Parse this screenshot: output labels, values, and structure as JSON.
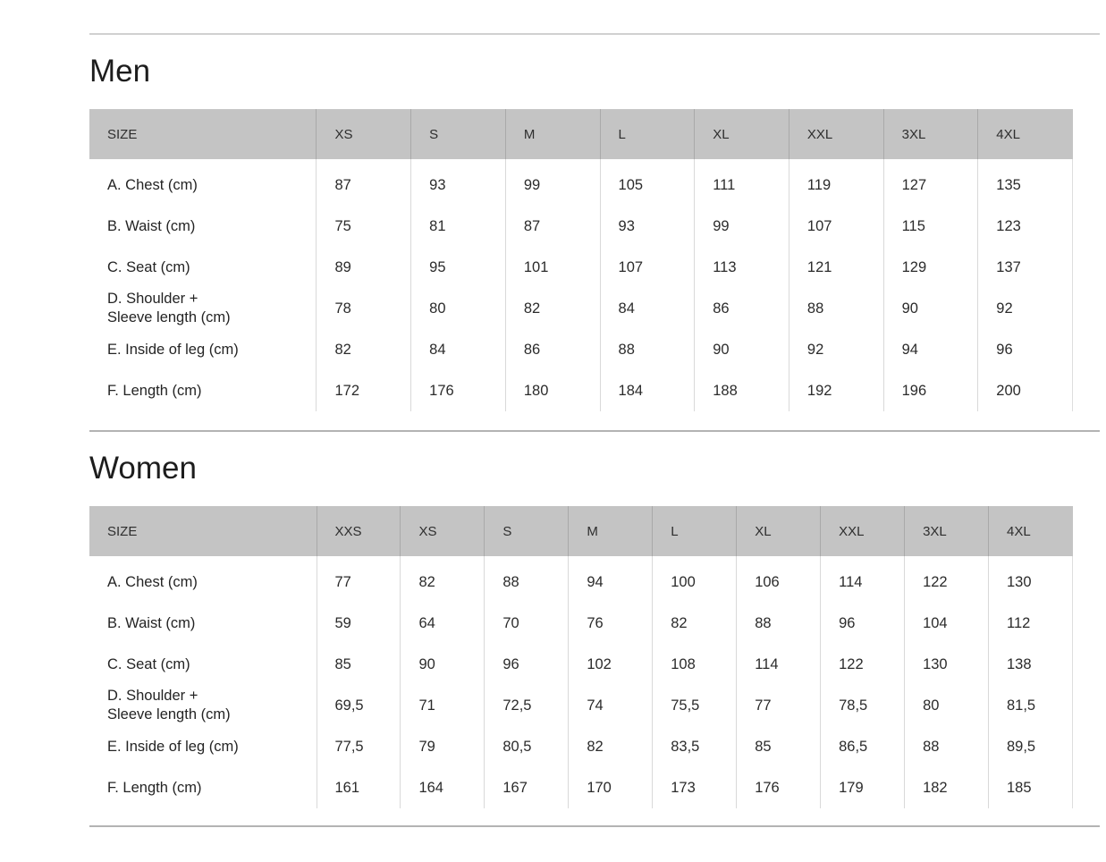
{
  "sections": [
    {
      "title": "Men",
      "size_label": "SIZE",
      "columns": [
        "XS",
        "S",
        "M",
        "L",
        "XL",
        "XXL",
        "3XL",
        "4XL"
      ],
      "rows": [
        {
          "label": "A. Chest (cm)",
          "values": [
            "87",
            "93",
            "99",
            "105",
            "111",
            "119",
            "127",
            "135"
          ]
        },
        {
          "label": "B. Waist (cm)",
          "values": [
            "75",
            "81",
            "87",
            "93",
            "99",
            "107",
            "115",
            "123"
          ]
        },
        {
          "label": "C. Seat (cm)",
          "values": [
            "89",
            "95",
            "101",
            "107",
            "113",
            "121",
            "129",
            "137"
          ]
        },
        {
          "label": "D. Shoulder +\nSleeve length (cm)",
          "values": [
            "78",
            "80",
            "82",
            "84",
            "86",
            "88",
            "90",
            "92"
          ]
        },
        {
          "label": "E. Inside of leg (cm)",
          "values": [
            "82",
            "84",
            "86",
            "88",
            "90",
            "92",
            "94",
            "96"
          ]
        },
        {
          "label": "F. Length (cm)",
          "values": [
            "172",
            "176",
            "180",
            "184",
            "188",
            "192",
            "196",
            "200"
          ]
        }
      ]
    },
    {
      "title": "Women",
      "size_label": "SIZE",
      "columns": [
        "XXS",
        "XS",
        "S",
        "M",
        "L",
        "XL",
        "XXL",
        "3XL",
        "4XL"
      ],
      "rows": [
        {
          "label": "A. Chest (cm)",
          "values": [
            "77",
            "82",
            "88",
            "94",
            "100",
            "106",
            "114",
            "122",
            "130"
          ]
        },
        {
          "label": "B. Waist (cm)",
          "values": [
            "59",
            "64",
            "70",
            "76",
            "82",
            "88",
            "96",
            "104",
            "112"
          ]
        },
        {
          "label": "C. Seat (cm)",
          "values": [
            "85",
            "90",
            "96",
            "102",
            "108",
            "114",
            "122",
            "130",
            "138"
          ]
        },
        {
          "label": "D. Shoulder +\nSleeve length (cm)",
          "values": [
            "69,5",
            "71",
            "72,5",
            "74",
            "75,5",
            "77",
            "78,5",
            "80",
            "81,5"
          ]
        },
        {
          "label": "E. Inside of leg (cm)",
          "values": [
            "77,5",
            "79",
            "80,5",
            "82",
            "83,5",
            "85",
            "86,5",
            "88",
            "89,5"
          ]
        },
        {
          "label": "F. Length (cm)",
          "values": [
            "161",
            "164",
            "167",
            "170",
            "173",
            "176",
            "179",
            "182",
            "185"
          ]
        }
      ]
    }
  ],
  "colors": {
    "header_background": "#c4c4c4",
    "top_rule": "#d0d0d0",
    "section_rule": "#b3b3b3",
    "column_separator": "#d9d9d9",
    "text": "#2b2b2b"
  }
}
